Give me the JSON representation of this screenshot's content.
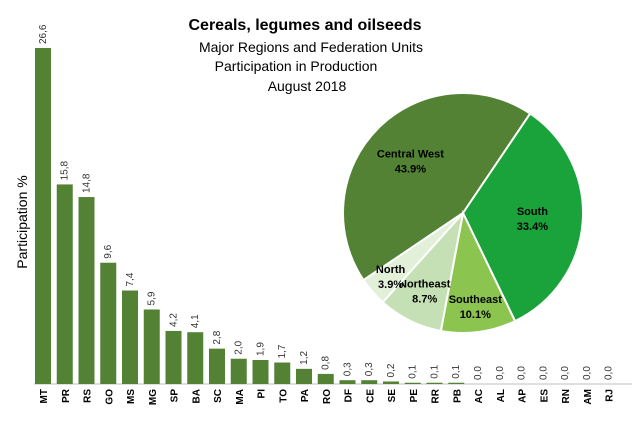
{
  "header": {
    "title": "Cereals, legumes and oilseeds",
    "subtitle_1": "Major Regions and Federation Units",
    "subtitle_2": "Participation in Production",
    "subtitle_3": "August 2018"
  },
  "colors": {
    "bar": "#548235",
    "pie": [
      "#538234",
      "#1aa33a",
      "#8cc450",
      "#c5e0b4",
      "#e2f0d9"
    ]
  },
  "chart_data": [
    {
      "type": "bar",
      "ylabel": "Participation %",
      "xlabel": "",
      "categories": [
        "MT",
        "PR",
        "RS",
        "GO",
        "MS",
        "MG",
        "SP",
        "BA",
        "SC",
        "MA",
        "PI",
        "TO",
        "PA",
        "RO",
        "DF",
        "CE",
        "SE",
        "PE",
        "RR",
        "PB",
        "AC",
        "AL",
        "AP",
        "ES",
        "RN",
        "AM",
        "RJ"
      ],
      "values": [
        26.6,
        15.8,
        14.8,
        9.6,
        7.4,
        5.9,
        4.2,
        4.1,
        2.8,
        2.0,
        1.9,
        1.7,
        1.2,
        0.8,
        0.3,
        0.3,
        0.2,
        0.1,
        0.1,
        0.1,
        0.0,
        0.0,
        0.0,
        0.0,
        0.0,
        0.0,
        0.0
      ],
      "value_labels": [
        "26,6",
        "15,8",
        "14,8",
        "9,6",
        "7,4",
        "5,9",
        "4,2",
        "4,1",
        "2,8",
        "2,0",
        "1,9",
        "1,7",
        "1,2",
        "0,8",
        "0,3",
        "0,3",
        "0,2",
        "0,1",
        "0,1",
        "0,1",
        "0,0",
        "0,0",
        "0,0",
        "0,0",
        "0,0",
        "0,0",
        "0,0"
      ],
      "ylim": [
        0,
        26.6
      ]
    },
    {
      "type": "pie",
      "slices": [
        {
          "name": "Central West",
          "label": "43.9%",
          "value": 43.9
        },
        {
          "name": "South",
          "label": "33.4%",
          "value": 33.4
        },
        {
          "name": "Southeast",
          "label": "10.1%",
          "value": 10.1
        },
        {
          "name": "Northeast",
          "label": "8.7%",
          "value": 8.7
        },
        {
          "name": "North",
          "label": "3.9%",
          "value": 3.9
        }
      ]
    }
  ]
}
